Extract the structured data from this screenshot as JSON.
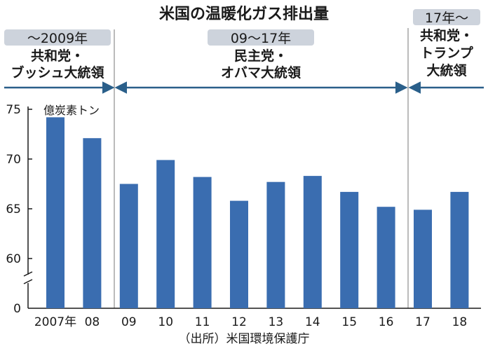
{
  "chart_data": {
    "type": "bar",
    "title": "米国の温暖化ガス排出量",
    "unit": "億炭素トン",
    "source": "（出所）米国環境保護庁",
    "categories": [
      "2007年",
      "08",
      "09",
      "10",
      "11",
      "12",
      "13",
      "14",
      "15",
      "16",
      "17",
      "18"
    ],
    "values": [
      74.2,
      72.1,
      67.5,
      69.9,
      68.2,
      65.8,
      67.7,
      68.3,
      66.7,
      65.2,
      64.9,
      66.7
    ],
    "y_ticks": [
      "0",
      "60",
      "65",
      "70",
      "75"
    ],
    "ylim": [
      60,
      75
    ],
    "y_axis_break": true,
    "bar_color": "#3a6db0",
    "arrow_color": "#2a5f8a",
    "label_box_color": "#cdd3dc",
    "periods": [
      {
        "range": "～2009年",
        "party": "共和党・",
        "leader": "ブッシュ大統領"
      },
      {
        "range": "09～17年",
        "party": "民主党・",
        "leader": "オバマ大統領"
      },
      {
        "range": "17年～",
        "party": "共和党・",
        "leader": "トランプ大統領"
      }
    ]
  }
}
